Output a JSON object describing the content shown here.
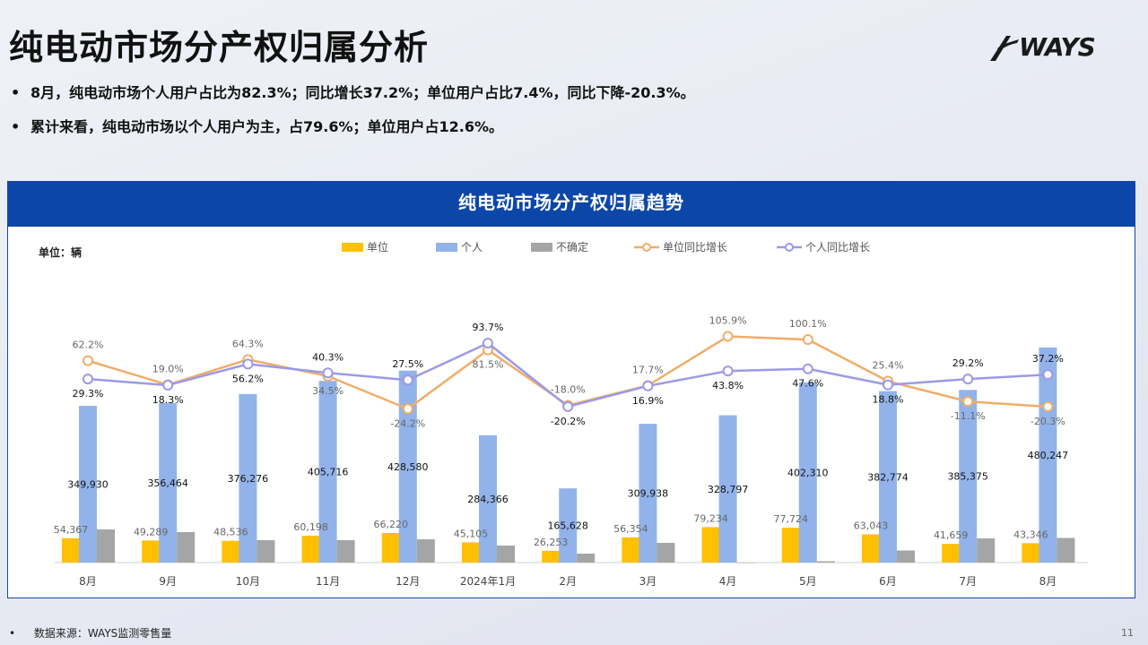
{
  "page": {
    "title": "纯电动市场分产权归属分析",
    "logo_text": "WAYS",
    "bullets": [
      "8月，纯电动市场个人用户占比为82.3%；同比增长37.2%；单位用户占比7.4%，同比下降-20.3%。",
      "累计来看，纯电动市场以个人用户为主，占79.6%；单位用户占12.6%。"
    ],
    "bullet_symbol": "•",
    "footer": "数据来源：WAYS监测零售量",
    "page_number": "11"
  },
  "colors": {
    "unit_bar": "#ffc000",
    "personal_bar": "#92b3ea",
    "uncertain_bar": "#a5a5a5",
    "unit_yoy_line": "#f0ad6a",
    "personal_yoy_line": "#9c9ae6",
    "header_bg": "#0c47a8"
  },
  "chart_data": {
    "type": "bar",
    "title": "纯电动市场分产权归属趋势",
    "unit_label": "单位：辆",
    "legend_position": "top",
    "grid": false,
    "categories": [
      "8月",
      "9月",
      "10月",
      "11月",
      "12月",
      "2024年1月",
      "2月",
      "3月",
      "4月",
      "5月",
      "6月",
      "7月",
      "8月"
    ],
    "series": [
      {
        "name": "单位",
        "type": "bar",
        "axis": "left",
        "color_key": "unit_bar",
        "values": [
          54367,
          49289,
          48536,
          60198,
          66220,
          45105,
          26253,
          56354,
          79234,
          77724,
          63043,
          41659,
          43346
        ],
        "labels": [
          "54,367",
          "49,289",
          "48,536",
          "60,198",
          "66,220",
          "45,105",
          "26,253",
          "56,354",
          "79,234",
          "77,724",
          "63,043",
          "41,659",
          "43,346"
        ]
      },
      {
        "name": "个人",
        "type": "bar",
        "axis": "left",
        "color_key": "personal_bar",
        "values": [
          349930,
          356464,
          376276,
          405716,
          428580,
          284366,
          165628,
          309938,
          328797,
          402310,
          382774,
          385375,
          480247
        ],
        "labels": [
          "349,930",
          "356,464",
          "376,276",
          "405,716",
          "428,580",
          "284,366",
          "165,628",
          "309,938",
          "328,797",
          "402,310",
          "382,774",
          "385,375",
          "480,247"
        ]
      },
      {
        "name": "不确定",
        "type": "bar",
        "axis": "left",
        "color_key": "uncertain_bar",
        "values": [
          74000,
          68000,
          50000,
          50000,
          52000,
          38000,
          20000,
          44000,
          0,
          3000,
          27000,
          54000,
          55000
        ]
      },
      {
        "name": "单位同比增长",
        "type": "line",
        "axis": "right",
        "color_key": "unit_yoy_line",
        "values": [
          62.2,
          19.0,
          64.3,
          34.5,
          -24.2,
          81.5,
          -18.0,
          17.7,
          105.9,
          100.1,
          25.4,
          -11.1,
          -20.3
        ],
        "labels": [
          "62.2%",
          "19.0%",
          "64.3%",
          "34.5%",
          "-24.2%",
          "81.5%",
          "-18.0%",
          "17.7%",
          "105.9%",
          "100.1%",
          "25.4%",
          "-11.1%",
          "-20.3%"
        ]
      },
      {
        "name": "个人同比增长",
        "type": "line",
        "axis": "right",
        "color_key": "personal_yoy_line",
        "values": [
          29.3,
          18.3,
          56.2,
          40.3,
          27.5,
          93.7,
          -20.2,
          16.9,
          43.8,
          47.6,
          18.8,
          29.2,
          37.2
        ],
        "labels": [
          "29.3%",
          "18.3%",
          "56.2%",
          "40.3%",
          "27.5%",
          "93.7%",
          "-20.2%",
          "16.9%",
          "43.8%",
          "47.6%",
          "18.8%",
          "29.2%",
          "37.2%"
        ]
      }
    ],
    "ylim_left": [
      0,
      560000
    ],
    "ylim_right": [
      -300,
      150
    ]
  }
}
